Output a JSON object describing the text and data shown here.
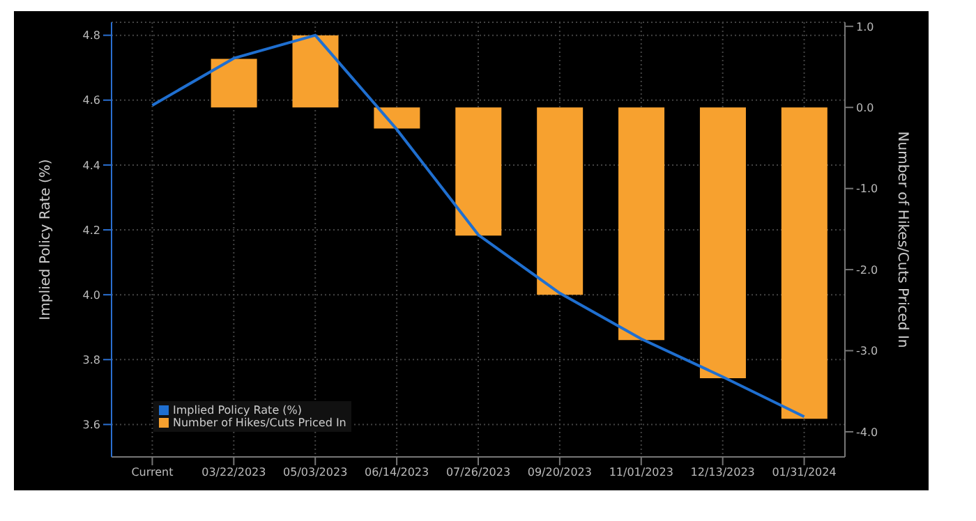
{
  "chart_data": {
    "type": "bar",
    "ylabel": "Implied Policy Rate (%)",
    "y2label": "Number of Hikes/Cuts Priced In",
    "categories": [
      "Current",
      "03/22/2023",
      "05/03/2023",
      "06/14/2023",
      "07/26/2023",
      "09/20/2023",
      "11/01/2023",
      "12/13/2023",
      "01/31/2024"
    ],
    "series": [
      {
        "name": "Number of Hikes/Cuts Priced In",
        "axis": "y2",
        "color": "#f7a12f",
        "values": [
          0,
          0.6,
          0.89,
          -0.26,
          -1.58,
          -2.31,
          -2.87,
          -3.34,
          -3.84
        ]
      },
      {
        "name": "Implied Policy Rate (%)",
        "type": "line",
        "axis": "y",
        "color": "#1f6fd0",
        "values": [
          4.584,
          4.729,
          4.8,
          4.51,
          4.185,
          4.005,
          3.864,
          3.747,
          3.624
        ]
      }
    ],
    "ylim": [
      3.5,
      4.84
    ],
    "yticks": [
      3.6,
      3.8,
      {
        "value": 4,
        "label": "4.0"
      },
      4.2,
      4.4,
      4.6,
      4.8
    ],
    "y2lim": [
      -4.31,
      1.05
    ],
    "y2ticks": [
      {
        "value": -4,
        "label": "-4.0"
      },
      {
        "value": -3,
        "label": "-3.0"
      },
      {
        "value": -2,
        "label": "-2.0"
      },
      {
        "value": -1,
        "label": "-1.0"
      },
      {
        "value": 0,
        "label": "0.0"
      },
      {
        "value": 1,
        "label": "1.0"
      }
    ],
    "grid": true,
    "legend": "bottom left",
    "marker": "none",
    "line_style": "solid"
  }
}
